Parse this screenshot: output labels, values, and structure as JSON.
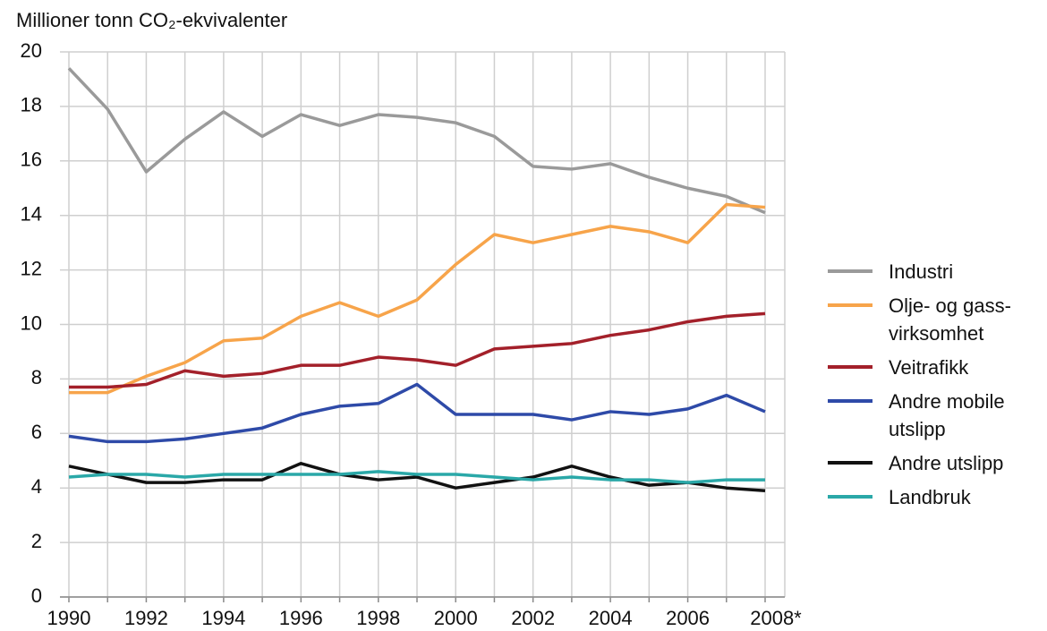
{
  "chart_data": {
    "type": "line",
    "y_axis_label": "Millioner tonn CO₂-ekvivalenter",
    "categories": [
      "1990",
      null,
      "1992",
      null,
      "1994",
      null,
      "1996",
      null,
      "1998",
      null,
      "2000",
      null,
      "2002",
      null,
      "2004",
      null,
      "2006",
      null,
      "2008*"
    ],
    "series": [
      {
        "name": "Industri",
        "color": "#9a9a9a",
        "values": [
          19.4,
          17.9,
          15.6,
          16.8,
          17.8,
          16.9,
          17.7,
          17.3,
          17.7,
          17.6,
          17.4,
          16.9,
          15.8,
          15.7,
          15.9,
          15.4,
          15.0,
          14.7,
          14.1
        ]
      },
      {
        "name": "Olje- og gass-virksomhet",
        "color": "#f7a44a",
        "values": [
          7.5,
          7.5,
          8.1,
          8.6,
          9.4,
          9.5,
          10.3,
          10.8,
          10.3,
          10.9,
          12.2,
          13.3,
          13.0,
          13.3,
          13.6,
          13.4,
          13.0,
          14.4,
          14.3
        ]
      },
      {
        "name": "Veitrafikk",
        "color": "#a3202a",
        "values": [
          7.7,
          7.7,
          7.8,
          8.3,
          8.1,
          8.2,
          8.5,
          8.5,
          8.8,
          8.7,
          8.5,
          9.1,
          9.2,
          9.3,
          9.6,
          9.8,
          10.1,
          10.3,
          10.4
        ]
      },
      {
        "name": "Andre mobile utslipp",
        "color": "#2e4aa8",
        "values": [
          5.9,
          5.7,
          5.7,
          5.8,
          6.0,
          6.2,
          6.7,
          7.0,
          7.1,
          7.8,
          6.7,
          6.7,
          6.7,
          6.5,
          6.8,
          6.7,
          6.9,
          7.4,
          6.8
        ]
      },
      {
        "name": "Andre utslipp",
        "color": "#111111",
        "values": [
          4.8,
          4.5,
          4.2,
          4.2,
          4.3,
          4.3,
          4.9,
          4.5,
          4.3,
          4.4,
          4.0,
          4.2,
          4.4,
          4.8,
          4.4,
          4.1,
          4.2,
          4.0,
          3.9
        ]
      },
      {
        "name": "Landbruk",
        "color": "#2aa8a8",
        "values": [
          4.4,
          4.5,
          4.5,
          4.4,
          4.5,
          4.5,
          4.5,
          4.5,
          4.6,
          4.5,
          4.5,
          4.4,
          4.3,
          4.4,
          4.3,
          4.3,
          4.2,
          4.3,
          4.3
        ]
      }
    ],
    "ylim": [
      0,
      20
    ],
    "yticks": [
      0,
      2,
      4,
      6,
      8,
      10,
      12,
      14,
      16,
      18,
      20
    ],
    "grid": true
  }
}
